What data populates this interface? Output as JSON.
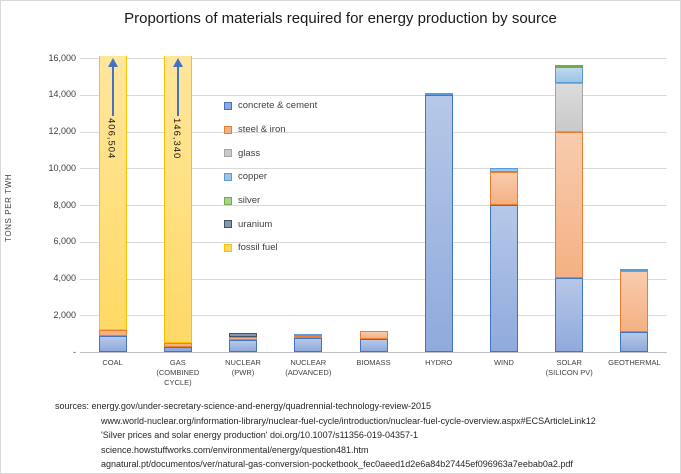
{
  "chart_data": {
    "type": "stacked-bar",
    "title": "Proportions of materials required for energy production by source",
    "ylabel": "TONS PER TWH",
    "ylim": [
      0,
      16000
    ],
    "ytick_step": 2000,
    "ytick_labels": [
      "16,000",
      "14,000",
      "12,000",
      "10,000",
      "8,000",
      "6,000",
      "4,000",
      "2,000",
      "-"
    ],
    "grid": true,
    "legend_position": "inside-plot-left",
    "categories": [
      "COAL",
      "GAS (COMBINED CYCLE)",
      "NUCLEAR (PWR)",
      "NUCLEAR (ADVANCED)",
      "BIOMASS",
      "HYDRO",
      "WIND",
      "SOLAR (SILICON PV)",
      "GEOTHERMAL"
    ],
    "category_display": [
      "COAL",
      "GAS\n(COMBINED\nCYCLE)",
      "NUCLEAR\n(PWR)",
      "NUCLEAR\n(ADVANCED)",
      "BIOMASS",
      "HYDRO",
      "WIND",
      "SOLAR\n(SILICON PV)",
      "GEOTHERMAL"
    ],
    "series": [
      {
        "name": "concrete & cement",
        "color": "#4472C4",
        "fill": "#8FAADC",
        "values": [
          870,
          300,
          650,
          740,
          690,
          14000,
          8000,
          4050,
          1100
        ]
      },
      {
        "name": "steel & iron",
        "color": "#ED7D31",
        "fill": "#F4B183",
        "values": [
          310,
          200,
          180,
          110,
          460,
          0,
          1800,
          7900,
          3300
        ]
      },
      {
        "name": "glass",
        "color": "#A5A5A5",
        "fill": "#C9C9C9",
        "values": [
          0,
          0,
          0,
          0,
          0,
          0,
          0,
          2700,
          0
        ]
      },
      {
        "name": "copper",
        "color": "#5B9BD5",
        "fill": "#9DC3E6",
        "values": [
          0,
          0,
          0,
          140,
          0,
          100,
          200,
          850,
          120
        ]
      },
      {
        "name": "silver",
        "color": "#70AD47",
        "fill": "#A9D18E",
        "values": [
          0,
          0,
          0,
          0,
          0,
          0,
          0,
          100,
          0
        ]
      },
      {
        "name": "uranium",
        "color": "#44546A",
        "fill": "#8496B0",
        "values": [
          0,
          0,
          180,
          0,
          0,
          0,
          0,
          0,
          0
        ]
      },
      {
        "name": "fossil fuel",
        "color": "#FFC000",
        "fill": "#FFD966",
        "values": [
          406504,
          146340,
          0,
          0,
          0,
          0,
          0,
          0,
          0
        ]
      }
    ],
    "annotations": [
      {
        "category": "COAL",
        "category_index": 0,
        "label": "406,504",
        "arrow": "up"
      },
      {
        "category": "GAS (COMBINED CYCLE)",
        "category_index": 1,
        "label": "146,340",
        "arrow": "up"
      }
    ],
    "overflow_note": "COAL and GAS fossil-fuel totals exceed the 16,000 axis maximum; bars are truncated with upward arrows"
  },
  "sources": {
    "lines": [
      "sources: energy.gov/under-secretary-science-and-energy/quadrennial-technology-review-2015",
      "www.world-nuclear.org/information-library/nuclear-fuel-cycle/introduction/nuclear-fuel-cycle-overview.aspx#ECSArticleLink12",
      "'Silver prices and solar energy production' doi.org/10.1007/s11356-019-04357-1",
      "science.howstuffworks.com/environmental/energy/question481.htm",
      "agnatural.pt/documentos/ver/natural-gas-conversion-pocketbook_fec0aeed1d2e6a84b27445ef096963a7eebab0a2.pdf"
    ]
  }
}
